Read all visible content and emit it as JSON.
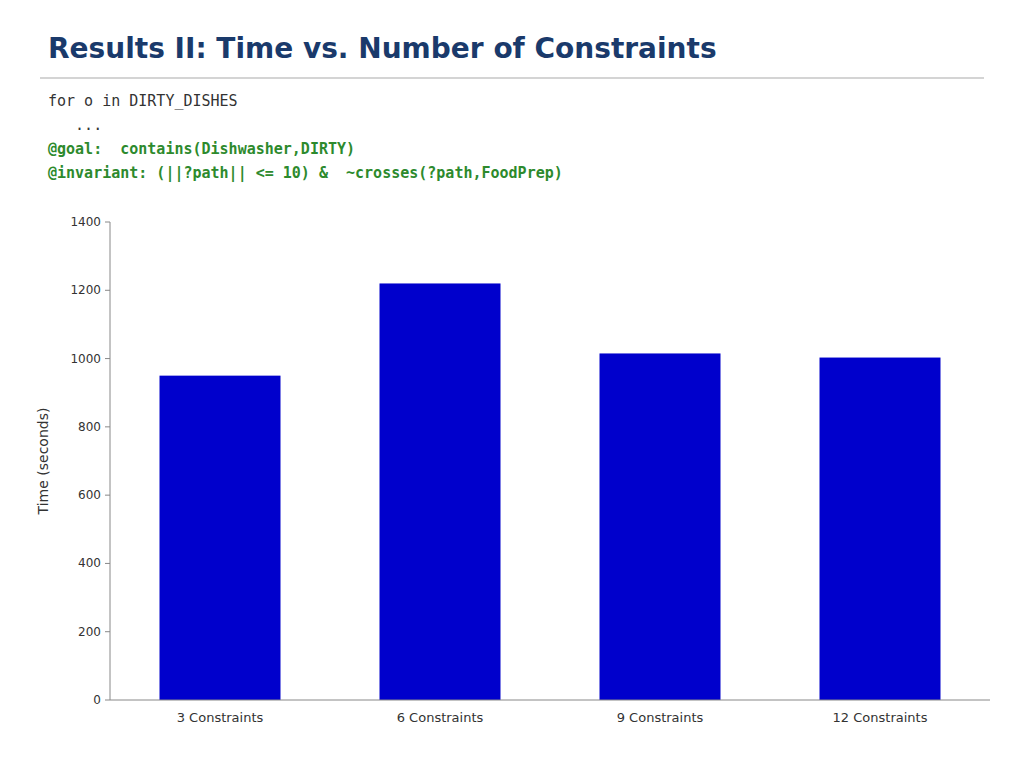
{
  "chart_data": {
    "type": "bar",
    "title": "Results II: Time vs. Number of Constraints",
    "annotations": [
      "for o in DIRTY_DISHES",
      "   ...",
      "@goal:  contains(Dishwasher,DIRTY)",
      "@invariant: (||?path|| <= 10) &  ~crosses(?path,FoodPrep)"
    ],
    "categories": [
      "3 Constraints",
      "6 Constraints",
      "9 Constraints",
      "12 Constraints"
    ],
    "values": [
      950,
      1220,
      1015,
      1003
    ],
    "color": "#0000cc",
    "ylabel": "Time (seconds)",
    "ylim": [
      0,
      1400
    ],
    "yticks": [
      0,
      200,
      400,
      600,
      800,
      1000,
      1200,
      1400
    ],
    "grid": false
  }
}
